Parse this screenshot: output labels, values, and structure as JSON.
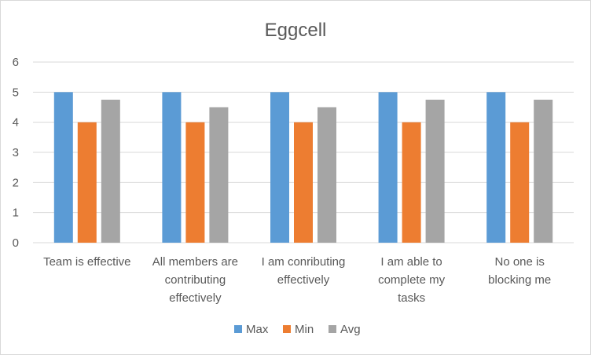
{
  "chart_data": {
    "type": "bar",
    "title": "Eggcell",
    "categories": [
      [
        "Team is effective"
      ],
      [
        "All members are",
        "contributing",
        "effectively"
      ],
      [
        "I am conributing",
        "effectively"
      ],
      [
        "I am able to",
        "complete my",
        "tasks"
      ],
      [
        "No one is",
        "blocking me"
      ]
    ],
    "series": [
      {
        "name": "Max",
        "color": "#5b9bd5",
        "values": [
          5,
          5,
          5,
          5,
          5
        ]
      },
      {
        "name": "Min",
        "color": "#ed7d31",
        "values": [
          4,
          4,
          4,
          4,
          4
        ]
      },
      {
        "name": "Avg",
        "color": "#a5a5a5",
        "values": [
          4.75,
          4.5,
          4.5,
          4.75,
          4.75
        ]
      }
    ],
    "yticks": [
      "0",
      "1",
      "2",
      "3",
      "4",
      "5",
      "6"
    ],
    "ylim": [
      0,
      6
    ],
    "grid": true,
    "legend": "bottom"
  }
}
